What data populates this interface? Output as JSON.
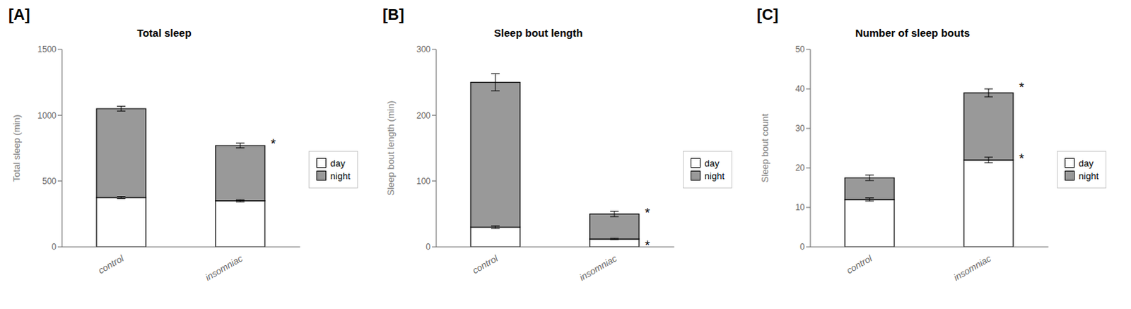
{
  "chart_data": [
    {
      "type": "bar",
      "label": "[A]",
      "title": "Total sleep",
      "ylabel": "Total sleep (min)",
      "stacked": true,
      "legend": "right",
      "categories": [
        "control",
        "insomniac"
      ],
      "series": [
        {
          "name": "day",
          "color": "#ffffff",
          "values": [
            375,
            350
          ],
          "errors": [
            8,
            8
          ]
        },
        {
          "name": "night",
          "color": "#999999",
          "values": [
            675,
            420
          ],
          "errors": [
            18,
            18
          ]
        }
      ],
      "ylim": [
        0,
        1500
      ],
      "yticks": [
        0,
        500,
        1000,
        1500
      ],
      "annotations": [
        {
          "text": "*",
          "x": "insomniac",
          "y": 790
        }
      ]
    },
    {
      "type": "bar",
      "label": "[B]",
      "title": "Sleep bout length",
      "ylabel": "Sleep bout length (min)",
      "stacked": true,
      "legend": "right",
      "categories": [
        "control",
        "insomniac"
      ],
      "series": [
        {
          "name": "day",
          "color": "#ffffff",
          "values": [
            30,
            12
          ],
          "errors": [
            2,
            1
          ]
        },
        {
          "name": "night",
          "color": "#999999",
          "values": [
            220,
            38
          ],
          "errors": [
            13,
            4
          ]
        }
      ],
      "ylim": [
        0,
        300
      ],
      "yticks": [
        0,
        100,
        200,
        300
      ],
      "annotations": [
        {
          "text": "*",
          "x": "insomniac",
          "y": 53
        },
        {
          "text": "*",
          "x": "insomniac",
          "y": 3
        }
      ]
    },
    {
      "type": "bar",
      "label": "[C]",
      "title": "Number of sleep bouts",
      "ylabel": "Sleep bout count",
      "stacked": true,
      "legend": "right",
      "categories": [
        "control",
        "insomniac"
      ],
      "series": [
        {
          "name": "day",
          "color": "#ffffff",
          "values": [
            12,
            22
          ],
          "errors": [
            0.4,
            0.7
          ]
        },
        {
          "name": "night",
          "color": "#999999",
          "values": [
            5.5,
            17
          ],
          "errors": [
            0.7,
            1.0
          ]
        }
      ],
      "ylim": [
        0,
        50
      ],
      "yticks": [
        0,
        10,
        20,
        30,
        40,
        50
      ],
      "annotations": [
        {
          "text": "*",
          "x": "insomniac",
          "y": 40.5
        },
        {
          "text": "*",
          "x": "insomniac",
          "y": 22.5
        }
      ]
    }
  ]
}
